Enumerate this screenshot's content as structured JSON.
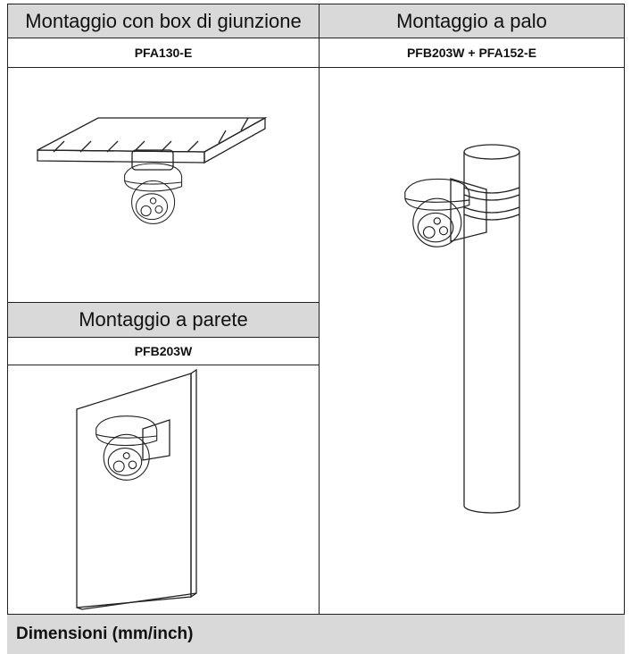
{
  "table": {
    "headers": [
      "Montaggio con box di giunzione",
      "Montaggio a palo"
    ],
    "models": [
      "PFA130-E",
      "PFB203W + PFA152-E"
    ],
    "sub_header": "Montaggio a parete",
    "sub_model": "PFB203W"
  },
  "section": {
    "title": "Dimensioni (mm/inch)"
  }
}
